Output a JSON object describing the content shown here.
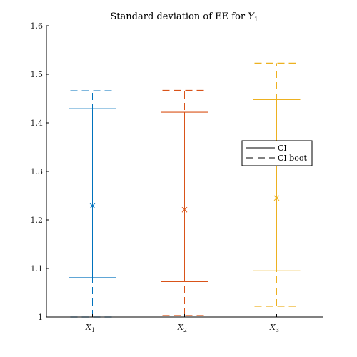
{
  "chart_data": {
    "type": "errorbar",
    "title_prefix": "Standard deviation of EE for ",
    "title_var": "Y",
    "title_sub": "1",
    "categories": [
      {
        "var": "X",
        "sub": "1"
      },
      {
        "var": "X",
        "sub": "2"
      },
      {
        "var": "X",
        "sub": "3"
      }
    ],
    "ylim": [
      1.0,
      1.6
    ],
    "yticks": [
      1,
      1.1,
      1.2,
      1.3,
      1.4,
      1.5,
      1.6
    ],
    "ytick_labels": [
      "1",
      "1.1",
      "1.2",
      "1.3",
      "1.4",
      "1.5",
      "1.6"
    ],
    "grid": false,
    "legend_position": "right",
    "legend": [
      {
        "label": "CI",
        "style": "solid"
      },
      {
        "label": "CI boot",
        "style": "dashed"
      }
    ],
    "series": [
      {
        "category": 0,
        "color": "#0072BD",
        "estimate": 1.229,
        "ci": [
          1.081,
          1.429
        ],
        "ci_boot": [
          1.0,
          1.466
        ]
      },
      {
        "category": 1,
        "color": "#D95319",
        "estimate": 1.221,
        "ci": [
          1.073,
          1.422
        ],
        "ci_boot": [
          1.003,
          1.467
        ]
      },
      {
        "category": 2,
        "color": "#EDB120",
        "estimate": 1.245,
        "ci": [
          1.095,
          1.448
        ],
        "ci_boot": [
          1.022,
          1.523
        ]
      }
    ]
  }
}
